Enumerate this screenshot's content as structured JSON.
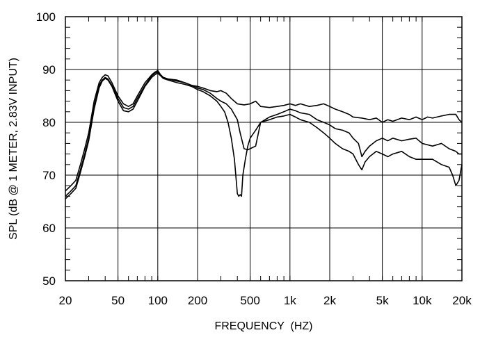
{
  "chart_data": {
    "type": "line",
    "title": "",
    "xlabel": "FREQUENCY  (HZ)",
    "ylabel": "SPL (dB @ 1 METER, 2.83V INPUT)",
    "x_scale": "log",
    "xlim": [
      20,
      20000
    ],
    "ylim": [
      50,
      100
    ],
    "grid": true,
    "legend": "none",
    "x_ticks": [
      {
        "value": 20,
        "label": "20"
      },
      {
        "value": 50,
        "label": "50"
      },
      {
        "value": 100,
        "label": "100"
      },
      {
        "value": 200,
        "label": "200"
      },
      {
        "value": 500,
        "label": "500"
      },
      {
        "value": 1000,
        "label": "1k"
      },
      {
        "value": 2000,
        "label": "2k"
      },
      {
        "value": 5000,
        "label": "5k"
      },
      {
        "value": 10000,
        "label": "10k"
      },
      {
        "value": 20000,
        "label": "20k"
      }
    ],
    "y_ticks": [
      {
        "value": 50,
        "label": "50"
      },
      {
        "value": 60,
        "label": "60"
      },
      {
        "value": 70,
        "label": "70"
      },
      {
        "value": 80,
        "label": "80"
      },
      {
        "value": 90,
        "label": "90"
      },
      {
        "value": 100,
        "label": "100"
      }
    ],
    "series": [
      {
        "x": [
          20,
          22,
          24,
          26,
          28,
          30,
          33,
          36,
          38,
          40,
          42,
          45,
          50,
          55,
          60,
          65,
          70,
          80,
          90,
          95,
          100,
          105,
          110,
          120,
          140,
          160,
          180,
          200,
          220,
          250,
          280,
          300,
          330,
          360,
          400,
          450,
          500,
          550,
          600,
          700,
          800,
          900,
          1000,
          1100,
          1200,
          1400,
          1600,
          1800,
          2000,
          2200,
          2500,
          2800,
          3000,
          3500,
          4000,
          4500,
          5000,
          5500,
          6000,
          7000,
          8000,
          9000,
          10000,
          11000,
          12000,
          14000,
          16000,
          18000,
          19000,
          20000
        ],
        "values": [
          67,
          68,
          69,
          72,
          75,
          78,
          84,
          87.5,
          88.5,
          89,
          88.8,
          87.5,
          85,
          83.5,
          83,
          83.5,
          85,
          87.5,
          89,
          89.5,
          89.8,
          89,
          88.5,
          88.2,
          88,
          87.5,
          87,
          86.8,
          86.5,
          86,
          85.8,
          86,
          85.5,
          84.5,
          83.5,
          83.3,
          83.5,
          84,
          83,
          82.8,
          83,
          83.2,
          83.5,
          83.2,
          83.5,
          83,
          83.2,
          83.5,
          83,
          82.5,
          82,
          81.5,
          81,
          80.8,
          80.5,
          80.8,
          80,
          80.5,
          80.2,
          80.8,
          80.5,
          81,
          80.5,
          81,
          80.8,
          81.2,
          81.5,
          81.5,
          80.5,
          80
        ]
      },
      {
        "x": [
          20,
          22,
          24,
          26,
          28,
          30,
          33,
          36,
          38,
          40,
          42,
          45,
          50,
          55,
          60,
          65,
          70,
          80,
          90,
          95,
          100,
          105,
          110,
          120,
          140,
          160,
          180,
          200,
          220,
          250,
          280,
          300,
          330,
          360,
          400,
          420,
          450,
          480,
          500,
          550,
          600,
          700,
          800,
          900,
          1000,
          1100,
          1200,
          1400,
          1600,
          1800,
          2000,
          2200,
          2500,
          2800,
          3000,
          3300,
          3500,
          3700,
          4000,
          4500,
          5000,
          5500,
          6000,
          7000,
          8000,
          9000,
          10000,
          12000,
          14000,
          16000,
          18000,
          19000,
          20000
        ],
        "values": [
          66,
          67,
          68,
          71,
          74,
          77,
          83,
          87,
          88,
          88.5,
          88.2,
          87,
          84.5,
          82.8,
          82.5,
          83,
          84.5,
          87,
          88.8,
          89.3,
          89.5,
          89,
          88.5,
          88.2,
          87.8,
          87.5,
          87,
          86.5,
          86.2,
          85.5,
          84.5,
          84,
          83.5,
          82.5,
          80.5,
          78,
          75,
          74.8,
          75,
          75.5,
          80,
          81,
          81.5,
          82,
          82.5,
          82.2,
          81.8,
          81.5,
          80.5,
          80,
          79.5,
          78.8,
          78.5,
          78,
          77,
          76,
          73.5,
          74.5,
          75.5,
          76.5,
          77,
          76.5,
          77,
          76.5,
          76.8,
          77,
          76,
          75.5,
          76,
          75,
          74.5,
          74,
          74
        ]
      },
      {
        "x": [
          20,
          22,
          24,
          26,
          28,
          30,
          33,
          36,
          38,
          40,
          42,
          45,
          50,
          55,
          60,
          65,
          70,
          80,
          90,
          95,
          100,
          105,
          110,
          120,
          140,
          160,
          180,
          200,
          220,
          250,
          280,
          300,
          320,
          340,
          360,
          380,
          400,
          410,
          420,
          430,
          440,
          460,
          480,
          500,
          550,
          600,
          700,
          800,
          900,
          1000,
          1100,
          1200,
          1400,
          1600,
          1800,
          2000,
          2200,
          2500,
          2800,
          3000,
          3300,
          3500,
          3700,
          4000,
          4500,
          5000,
          5500,
          6000,
          7000,
          8000,
          9000,
          10000,
          12000,
          14000,
          16000,
          17000,
          18000,
          19000,
          20000
        ],
        "values": [
          65.5,
          66.5,
          67.5,
          70.5,
          73.5,
          76.5,
          82.5,
          86.5,
          87.8,
          88.3,
          88,
          86.8,
          84,
          82.2,
          82,
          82.5,
          84,
          86.8,
          88.5,
          89,
          89.3,
          88.8,
          88.3,
          88,
          87.5,
          87.2,
          86.8,
          86.2,
          85.8,
          85,
          84,
          83,
          82,
          80,
          77,
          73,
          66.5,
          66,
          66.3,
          66,
          70,
          73,
          75.5,
          77,
          78.5,
          80,
          80.5,
          81,
          81.2,
          81.5,
          81,
          80.5,
          80,
          79,
          78,
          77,
          76,
          75,
          74.5,
          74,
          72,
          71,
          72.5,
          73.5,
          74.5,
          74,
          73.5,
          74,
          74.5,
          73.5,
          73,
          73,
          73,
          72,
          71.5,
          70,
          68,
          69,
          72
        ]
      }
    ]
  }
}
